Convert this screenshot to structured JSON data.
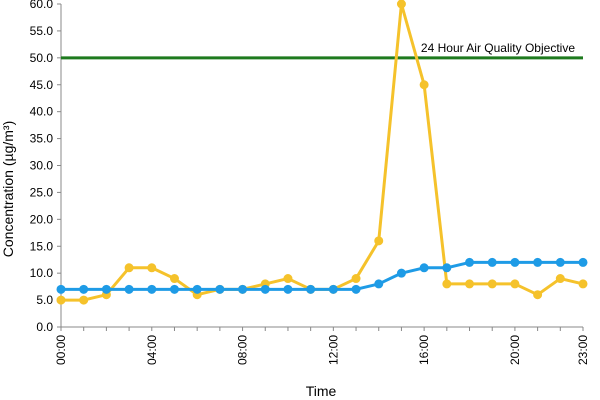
{
  "chart_data": {
    "type": "line",
    "xlabel": "Time",
    "ylabel": "Concentration (µg/m³)",
    "ylim": [
      0,
      60
    ],
    "y_ticks": [
      "0.0",
      "5.0",
      "10.0",
      "15.0",
      "20.0",
      "25.0",
      "30.0",
      "35.0",
      "40.0",
      "45.0",
      "50.0",
      "55.0",
      "60.0"
    ],
    "x_ticks": [
      {
        "hour": 0,
        "label": "00:00"
      },
      {
        "hour": 4,
        "label": "04:00"
      },
      {
        "hour": 8,
        "label": "08:00"
      },
      {
        "hour": 12,
        "label": "12:00"
      },
      {
        "hour": 16,
        "label": "16:00"
      },
      {
        "hour": 20,
        "label": "20:00"
      },
      {
        "hour": 23,
        "label": "23:00"
      }
    ],
    "x": [
      0,
      1,
      2,
      3,
      4,
      5,
      6,
      7,
      8,
      9,
      10,
      11,
      12,
      13,
      14,
      15,
      16,
      17,
      18,
      19,
      20,
      21,
      22,
      23
    ],
    "series": [
      {
        "color": "#F5C22B",
        "values": [
          5,
          5,
          6,
          11,
          11,
          9,
          6,
          7,
          7,
          8,
          9,
          7,
          7,
          9,
          16,
          60,
          45,
          8,
          8,
          8,
          8,
          6,
          9,
          8
        ]
      },
      {
        "color": "#1E9BE6",
        "values": [
          7,
          7,
          7,
          7,
          7,
          7,
          7,
          7,
          7,
          7,
          7,
          7,
          7,
          7,
          8,
          10,
          11,
          11,
          12,
          12,
          12,
          12,
          12,
          12
        ]
      }
    ],
    "reference_line": {
      "value": 50,
      "label": "24 Hour Air Quality Objective",
      "color": "#1E7A1E"
    },
    "grid": false,
    "legend": "none"
  }
}
